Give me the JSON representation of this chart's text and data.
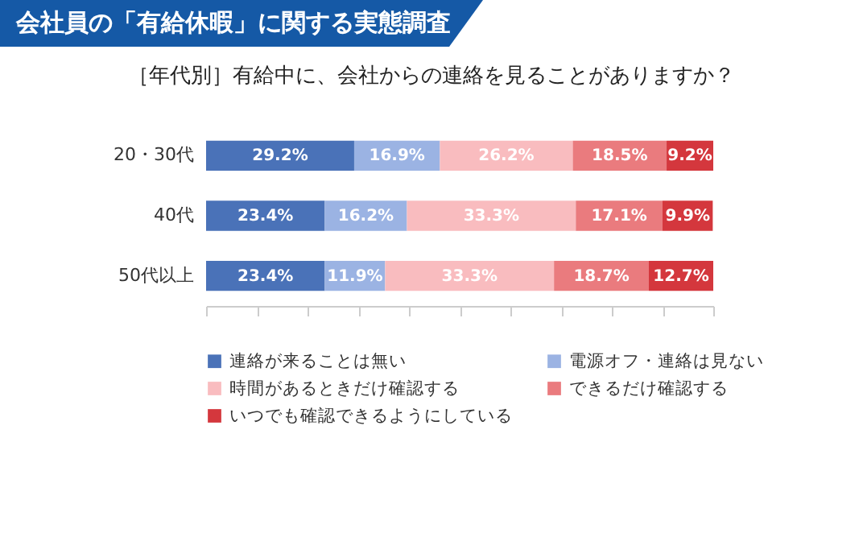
{
  "chart_data": {
    "type": "bar",
    "orientation": "horizontal",
    "stacked": true,
    "title": "会社員の「有給休暇」に関する実態調査",
    "subtitle": "［年代別］有給中に、会社からの連絡を見ることがありますか？",
    "categories": [
      "20・30代",
      "40代",
      "50代以上"
    ],
    "series": [
      {
        "name": "連絡が来ることは無い",
        "color": "#4a72b8",
        "values": [
          29.2,
          23.4,
          23.4
        ],
        "value_labels": [
          "29.2%",
          "23.4%",
          "23.4%"
        ]
      },
      {
        "name": "電源オフ・連絡は見ない",
        "color": "#9bb3e3",
        "values": [
          16.9,
          16.2,
          11.9
        ],
        "value_labels": [
          "16.9%",
          "16.2%",
          "11.9%"
        ]
      },
      {
        "name": "時間があるときだけ確認する",
        "color": "#f9bcbf",
        "values": [
          26.2,
          33.3,
          33.3
        ],
        "value_labels": [
          "26.2%",
          "33.3%",
          "33.3%"
        ]
      },
      {
        "name": "できるだけ確認する",
        "color": "#ea7b7e",
        "values": [
          18.5,
          17.1,
          18.7
        ],
        "value_labels": [
          "18.5%",
          "17.1%",
          "18.7%"
        ]
      },
      {
        "name": "いつでも確認できるようにしている",
        "color": "#d4373d",
        "values": [
          9.2,
          9.9,
          12.7
        ],
        "value_labels": [
          "9.2%",
          "9.9%",
          "12.7%"
        ]
      }
    ],
    "xlim": [
      0,
      100
    ],
    "xticks": [
      {
        "value": 0,
        "label": null
      },
      {
        "value": 10,
        "label": null
      },
      {
        "value": 20,
        "label": null
      },
      {
        "value": 30,
        "label": null
      },
      {
        "value": 40,
        "label": null
      },
      {
        "value": 50,
        "label": null
      },
      {
        "value": 60,
        "label": null
      },
      {
        "value": 70,
        "label": null
      },
      {
        "value": 80,
        "label": null
      },
      {
        "value": 90,
        "label": null
      },
      {
        "value": 100,
        "label": null
      }
    ],
    "tick_labels": "y",
    "legend": "bottom",
    "grid": false
  }
}
